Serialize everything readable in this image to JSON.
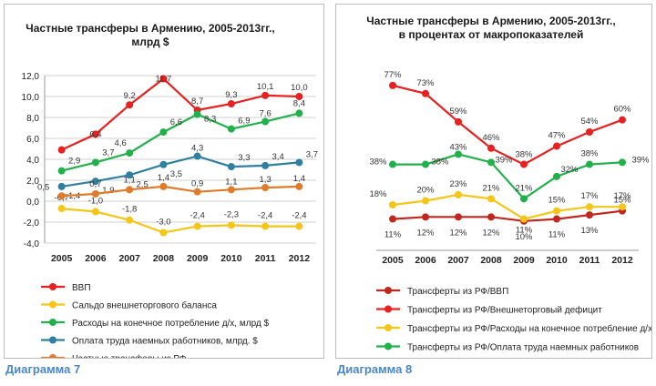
{
  "chart_data": [
    {
      "type": "line",
      "title": "Частные трансферы в Армению, 2005-2013гг., млрд $",
      "title_lines": [
        "Частные трансферы в Армению, 2005-2013гг.,",
        "млрд $"
      ],
      "categories": [
        "2005",
        "2006",
        "2007",
        "2008",
        "2009",
        "2010",
        "2011",
        "2012"
      ],
      "ylim": [
        -4,
        12
      ],
      "yticks": [
        "-4,0",
        "-2,0",
        "0,0",
        "2,0",
        "4,0",
        "6,0",
        "8,0",
        "10,0",
        "12,0"
      ],
      "grid": true,
      "legend_position": "bottom",
      "series": [
        {
          "name": "ВВП",
          "color": "#e8201f",
          "values": [
            4.9,
            6.4,
            9.2,
            11.7,
            8.7,
            9.3,
            10.1,
            10.0
          ],
          "labels": [
            "",
            "6,4",
            "9,2",
            "11,7",
            "8,7",
            "9,3",
            "10,1",
            "10,0"
          ]
        },
        {
          "name": "Сальдо внешнеторгового баланса",
          "color": "#f5c518",
          "values": [
            -0.7,
            -1.0,
            -1.8,
            -3.0,
            -2.4,
            -2.3,
            -2.4,
            -2.4
          ],
          "labels": [
            "-0,7",
            "-1,0",
            "-1,8",
            "-3,0",
            "-2,4",
            "-2,3",
            "-2,4",
            "-2,4"
          ]
        },
        {
          "name": "Расходы на конечное потребление д/х, млрд $",
          "color": "#21b14b",
          "values": [
            2.9,
            3.7,
            4.6,
            6.6,
            8.3,
            6.9,
            7.6,
            8.4
          ],
          "labels": [
            "2,9",
            "3,7",
            "4,6",
            "6,6",
            "8,3",
            "6,9",
            "7,6",
            "8,4"
          ]
        },
        {
          "name": "Оплата труда наемных работников, млрд. $",
          "color": "#2f7f9f",
          "values": [
            1.4,
            1.9,
            2.5,
            3.5,
            4.3,
            3.3,
            3.4,
            3.7
          ],
          "labels": [
            "1,4",
            "1,9",
            "2,5",
            "3,5",
            "4,3",
            "3,3",
            "3,4",
            "3,7"
          ]
        },
        {
          "name": "Частные трансферы из РФ",
          "color": "#e07b2a",
          "values": [
            0.5,
            0.7,
            1.1,
            1.4,
            0.9,
            1.1,
            1.3,
            1.4
          ],
          "labels": [
            "0,5",
            "0,7",
            "1,1",
            "1,4",
            "0,9",
            "1,1",
            "1,3",
            "1,4"
          ]
        }
      ]
    },
    {
      "type": "line",
      "title": "Частные трансферы в Армению, 2005-2013гг., в процентах от макропоказателей",
      "title_lines": [
        "Частные трансферы в Армению, 2005-2013гг.,",
        "в процентах от макропоказателей"
      ],
      "categories": [
        "2005",
        "2006",
        "2007",
        "2008",
        "2009",
        "2010",
        "2011",
        "2012"
      ],
      "ylim": [
        0,
        90
      ],
      "grid": false,
      "legend_position": "bottom",
      "series": [
        {
          "name": "Трансферты из РФ/ВВП",
          "color": "#c0271f",
          "values": [
            11,
            12,
            12,
            12,
            10,
            11,
            13,
            15
          ],
          "labels": [
            "11%",
            "12%",
            "12%",
            "12%",
            "10%",
            "11%",
            "13%",
            "15%"
          ]
        },
        {
          "name": "Трансферты из РФ/Внешнеторговый дефицит",
          "color": "#e8201f",
          "values": [
            77,
            73,
            59,
            46,
            38,
            47,
            54,
            60
          ],
          "labels": [
            "77%",
            "73%",
            "59%",
            "46%",
            "38%",
            "47%",
            "54%",
            "60%"
          ]
        },
        {
          "name": "Трансферты из РФ/Расходы на конечное потребление д/х",
          "color": "#f5c518",
          "values": [
            18,
            20,
            23,
            21,
            11,
            15,
            17,
            17
          ],
          "labels": [
            "18%",
            "20%",
            "23%",
            "21%",
            "11%",
            "15%",
            "17%",
            "17%"
          ]
        },
        {
          "name": "Трансферты из РФ/Оплата труда наемных работников",
          "color": "#21b14b",
          "values": [
            38,
            38,
            43,
            39,
            21,
            32,
            38,
            39
          ],
          "labels": [
            "38%",
            "38%",
            "43%",
            "39%",
            "21%",
            "32%",
            "38%",
            "39%"
          ]
        }
      ]
    }
  ],
  "captions": [
    "Диаграмма 7",
    "Диаграмма 8"
  ]
}
